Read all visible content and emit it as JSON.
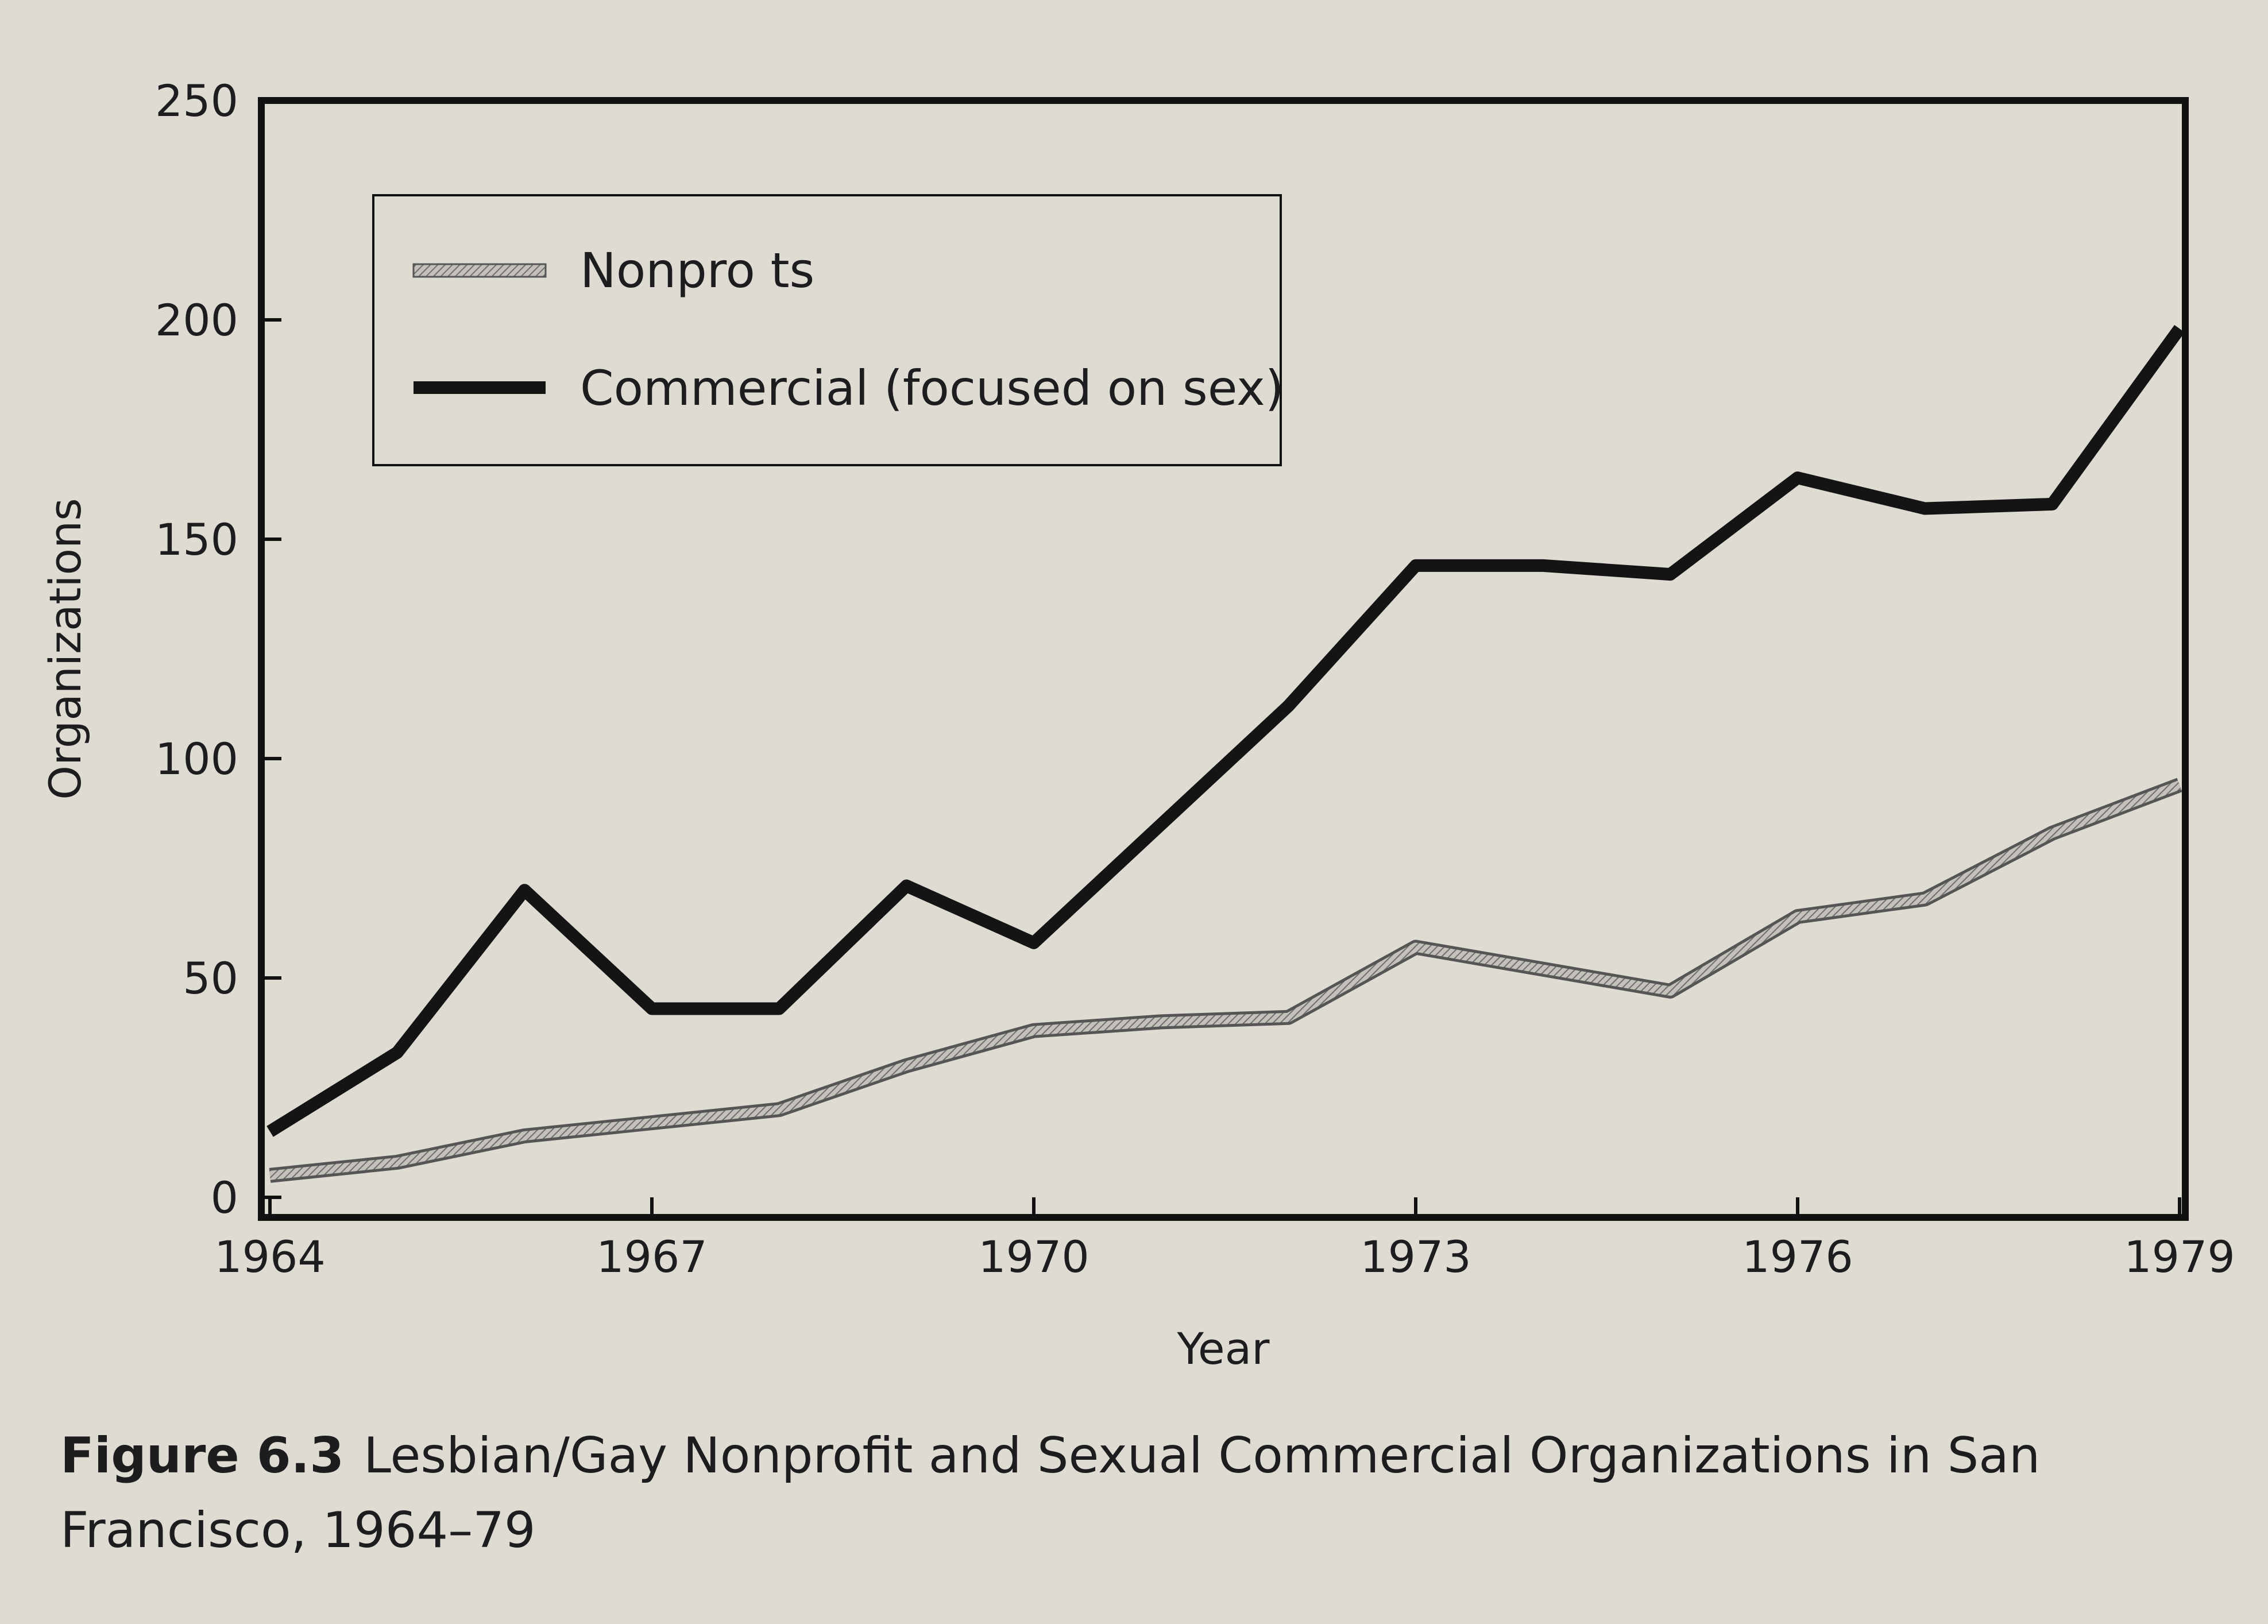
{
  "chart_data": {
    "type": "line",
    "xlabel": "Year",
    "ylabel": "Organizations",
    "ylim": [
      0,
      250
    ],
    "xlim": [
      1964,
      1979
    ],
    "x_ticks": [
      "1964",
      "1967",
      "1970",
      "1973",
      "1976",
      "1979"
    ],
    "y_ticks": [
      "0",
      "50",
      "100",
      "150",
      "200",
      "250"
    ],
    "grid": false,
    "legend_position": "top-left",
    "x": [
      1964,
      1965,
      1966,
      1967,
      1968,
      1969,
      1970,
      1971,
      1972,
      1973,
      1974,
      1975,
      1976,
      1977,
      1978,
      1979
    ],
    "series": [
      {
        "name": "Nonpro ts",
        "style": "hatched-gray",
        "color": "#9a9a9a",
        "values": [
          5,
          8,
          14,
          17,
          20,
          30,
          38,
          40,
          41,
          57,
          52,
          47,
          64,
          68,
          83,
          94
        ]
      },
      {
        "name": "Commercial (focused on sex)",
        "style": "solid-black",
        "color": "#141414",
        "values": [
          15,
          33,
          70,
          43,
          43,
          71,
          58,
          85,
          112,
          144,
          144,
          142,
          164,
          157,
          158,
          198
        ]
      }
    ]
  },
  "caption": {
    "label": "Figure 6.3",
    "text": "Lesbian/Gay Nonprofit and Sexual Commercial Organizations in San Francisco, 1964–79"
  }
}
